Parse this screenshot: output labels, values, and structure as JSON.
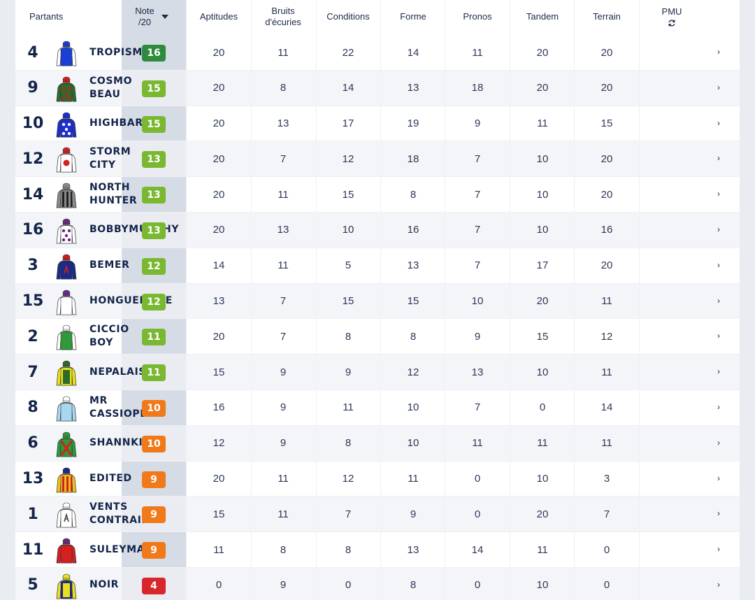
{
  "headers": {
    "partants": "Partants",
    "note_line1": "Note",
    "note_line2": "/20",
    "aptitudes": "Aptitudes",
    "bruits_line1": "Bruits",
    "bruits_line2": "d'écuries",
    "conditions": "Conditions",
    "forme": "Forme",
    "pronos": "Pronos",
    "tandem": "Tandem",
    "terrain": "Terrain",
    "pmu": "PMU"
  },
  "colors": {
    "green_dark": "#2e8b3e",
    "green_light": "#7ab832",
    "orange": "#f07a1a",
    "red": "#d9262a"
  },
  "rows": [
    {
      "num": "4",
      "name": "TROPISME",
      "note": "16",
      "aptitudes": "20",
      "bruits": "11",
      "conditions": "22",
      "forme": "14",
      "pronos": "11",
      "tandem": "20",
      "terrain": "20",
      "silk": {
        "body": "#1a3fd6",
        "sleeve": "#ffffff",
        "cap": "#1a3fd6",
        "pattern": "none",
        "accent": "#ffffff"
      }
    },
    {
      "num": "9",
      "name": "COSMO\nBEAU",
      "note": "15",
      "aptitudes": "20",
      "bruits": "8",
      "conditions": "14",
      "forme": "13",
      "pronos": "18",
      "tandem": "20",
      "terrain": "20",
      "silk": {
        "body": "#2d6b2d",
        "sleeve": "#2d6b2d",
        "cap": "#c8201e",
        "pattern": "dots",
        "accent": "#c8201e"
      }
    },
    {
      "num": "10",
      "name": "HIGHBARI",
      "note": "15",
      "aptitudes": "20",
      "bruits": "13",
      "conditions": "17",
      "forme": "19",
      "pronos": "9",
      "tandem": "11",
      "terrain": "15",
      "silk": {
        "body": "#1a2fd0",
        "sleeve": "#1a2fd0",
        "cap": "#1a2fd0",
        "pattern": "dots",
        "accent": "#ffffff"
      }
    },
    {
      "num": "12",
      "name": "STORM\nCITY",
      "note": "13",
      "aptitudes": "20",
      "bruits": "7",
      "conditions": "12",
      "forme": "18",
      "pronos": "7",
      "tandem": "10",
      "terrain": "20",
      "silk": {
        "body": "#ffffff",
        "sleeve": "#ffffff",
        "cap": "#d42020",
        "pattern": "disc",
        "accent": "#d42020"
      }
    },
    {
      "num": "14",
      "name": "NORTH\nHUNTER",
      "note": "13",
      "aptitudes": "20",
      "bruits": "11",
      "conditions": "15",
      "forme": "8",
      "pronos": "7",
      "tandem": "10",
      "terrain": "20",
      "silk": {
        "body": "#8a8a8a",
        "sleeve": "#8a8a8a",
        "cap": "#8a8a8a",
        "pattern": "stripes",
        "accent": "#222222"
      }
    },
    {
      "num": "16",
      "name": "BOBBYMURPHY",
      "note": "13",
      "aptitudes": "20",
      "bruits": "13",
      "conditions": "10",
      "forme": "16",
      "pronos": "7",
      "tandem": "10",
      "terrain": "16",
      "silk": {
        "body": "#ffffff",
        "sleeve": "#ffffff",
        "cap": "#6a2a7a",
        "pattern": "dots",
        "accent": "#6a2a7a"
      }
    },
    {
      "num": "3",
      "name": "BEMER",
      "note": "12",
      "aptitudes": "14",
      "bruits": "11",
      "conditions": "5",
      "forme": "13",
      "pronos": "7",
      "tandem": "17",
      "terrain": "20",
      "silk": {
        "body": "#1a2a8a",
        "sleeve": "#1a2a8a",
        "cap": "#c82020",
        "pattern": "letter",
        "accent": "#c82020"
      }
    },
    {
      "num": "15",
      "name": "HONGUEMARE",
      "note": "12",
      "aptitudes": "13",
      "bruits": "7",
      "conditions": "15",
      "forme": "15",
      "pronos": "10",
      "tandem": "20",
      "terrain": "11",
      "silk": {
        "body": "#ffffff",
        "sleeve": "#ffffff",
        "cap": "#6a2a8a",
        "pattern": "none",
        "accent": "#6a2a8a"
      }
    },
    {
      "num": "2",
      "name": "CICCIO\nBOY",
      "note": "11",
      "aptitudes": "20",
      "bruits": "7",
      "conditions": "8",
      "forme": "8",
      "pronos": "9",
      "tandem": "15",
      "terrain": "12",
      "silk": {
        "body": "#2e9a3a",
        "sleeve": "#ffffff",
        "cap": "#ffffff",
        "pattern": "none",
        "accent": "#2e9a3a"
      }
    },
    {
      "num": "7",
      "name": "NEPALAIS",
      "note": "11",
      "aptitudes": "15",
      "bruits": "9",
      "conditions": "9",
      "forme": "12",
      "pronos": "13",
      "tandem": "10",
      "terrain": "11",
      "silk": {
        "body": "#e8e020",
        "sleeve": "#e8e020",
        "cap": "#2d6b2d",
        "pattern": "vest",
        "accent": "#2d6b2d"
      }
    },
    {
      "num": "8",
      "name": "MR\nCASSIOPE",
      "note": "10",
      "aptitudes": "16",
      "bruits": "9",
      "conditions": "11",
      "forme": "10",
      "pronos": "7",
      "tandem": "0",
      "terrain": "14",
      "silk": {
        "body": "#a8d8f0",
        "sleeve": "#a8d8f0",
        "cap": "#ffffff",
        "pattern": "none",
        "accent": "#1a3a8a"
      }
    },
    {
      "num": "6",
      "name": "SHANNKIYA",
      "note": "10",
      "aptitudes": "12",
      "bruits": "9",
      "conditions": "8",
      "forme": "10",
      "pronos": "11",
      "tandem": "11",
      "terrain": "11",
      "silk": {
        "body": "#2e9a3a",
        "sleeve": "#2e9a3a",
        "cap": "#2e9a3a",
        "pattern": "cross",
        "accent": "#d42020"
      }
    },
    {
      "num": "13",
      "name": "EDITED",
      "note": "9",
      "aptitudes": "20",
      "bruits": "11",
      "conditions": "12",
      "forme": "11",
      "pronos": "0",
      "tandem": "10",
      "terrain": "3",
      "silk": {
        "body": "#f0c020",
        "sleeve": "#f0c020",
        "cap": "#1a2a8a",
        "pattern": "stripes",
        "accent": "#d42020"
      }
    },
    {
      "num": "1",
      "name": "VENTS\nCONTRAIRES",
      "note": "9",
      "aptitudes": "15",
      "bruits": "11",
      "conditions": "7",
      "forme": "9",
      "pronos": "0",
      "tandem": "20",
      "terrain": "7",
      "silk": {
        "body": "#ffffff",
        "sleeve": "#ffffff",
        "cap": "#ffffff",
        "pattern": "letter",
        "accent": "#444444"
      }
    },
    {
      "num": "11",
      "name": "SULEYMAN",
      "note": "9",
      "aptitudes": "11",
      "bruits": "8",
      "conditions": "8",
      "forme": "13",
      "pronos": "14",
      "tandem": "11",
      "terrain": "0",
      "silk": {
        "body": "#d42020",
        "sleeve": "#d42020",
        "cap": "#6a2a7a",
        "pattern": "none",
        "accent": "#d42020"
      }
    },
    {
      "num": "5",
      "name": "NOIR",
      "note": "4",
      "aptitudes": "0",
      "bruits": "9",
      "conditions": "0",
      "forme": "8",
      "pronos": "0",
      "tandem": "10",
      "terrain": "0",
      "silk": {
        "body": "#1a2a8a",
        "sleeve": "#e8e020",
        "cap": "#e8e020",
        "pattern": "vest",
        "accent": "#e8e020"
      }
    }
  ]
}
